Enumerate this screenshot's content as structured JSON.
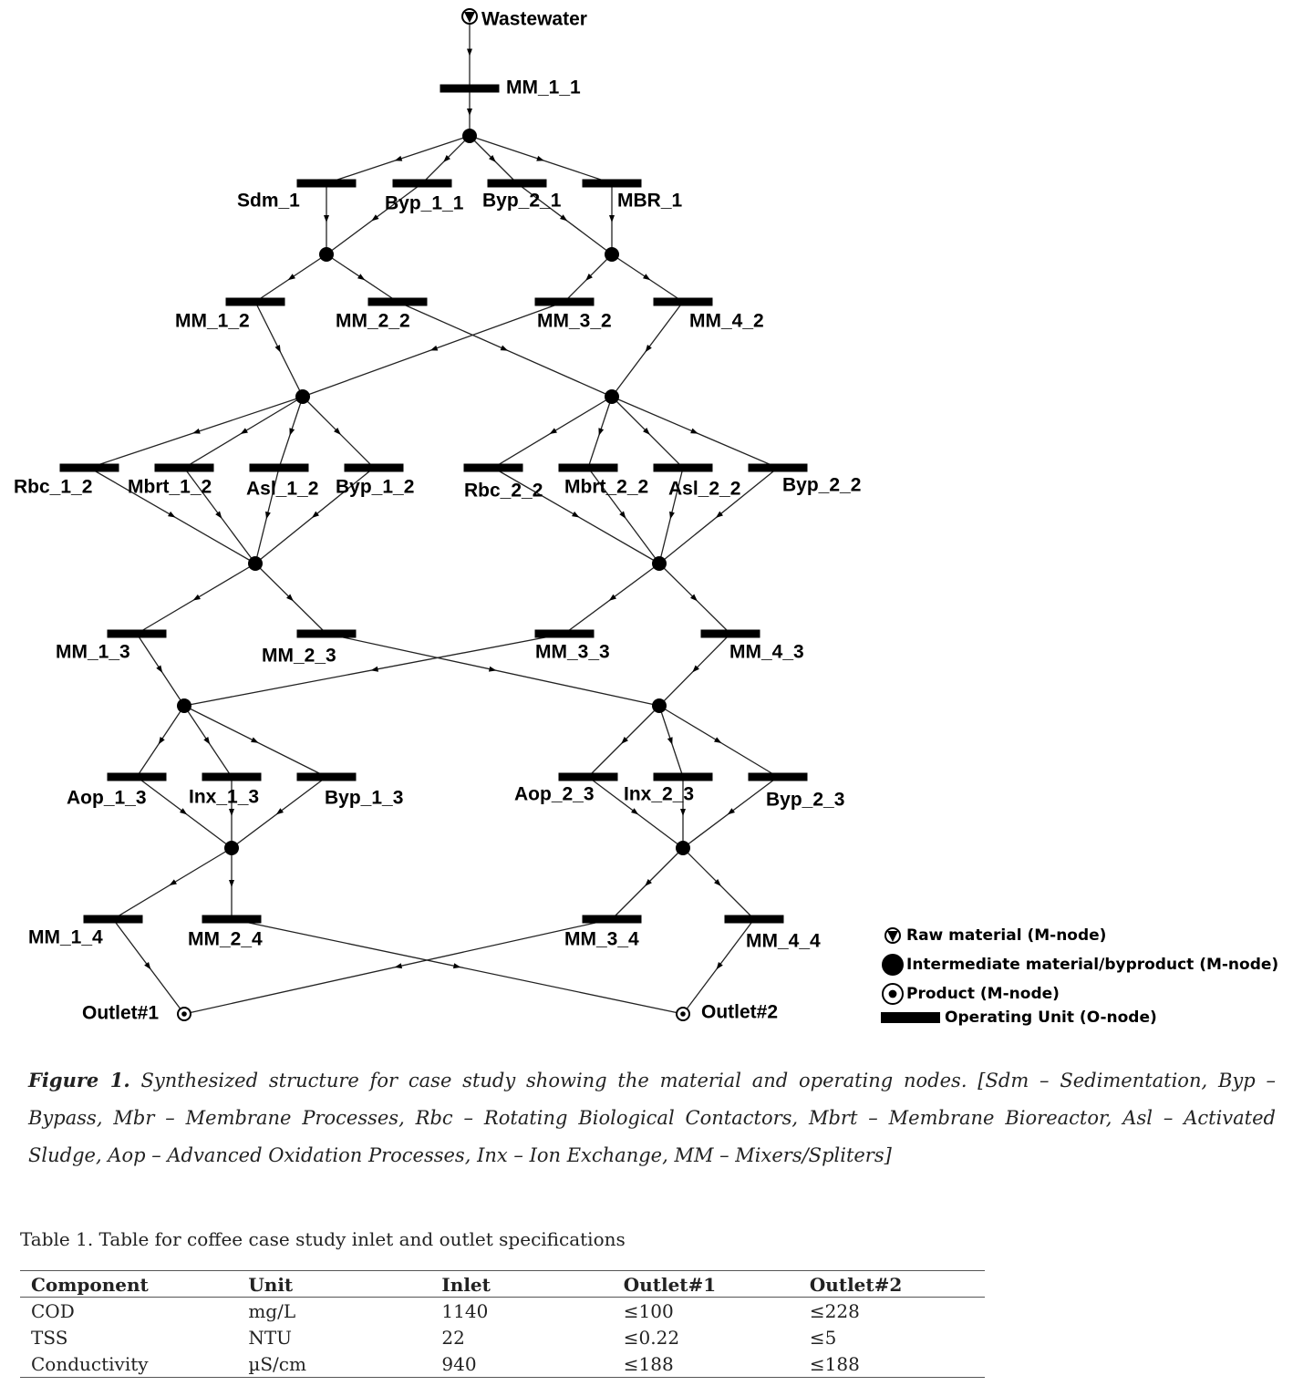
{
  "diagram": {
    "nodes": [
      {
        "label": "Wastewater"
      },
      {
        "label": "MM_1_1"
      },
      {
        "label": "Sdm_1"
      },
      {
        "label": "Byp_1_1"
      },
      {
        "label": "Byp_2_1"
      },
      {
        "label": "MBR_1"
      },
      {
        "label": "MM_1_2"
      },
      {
        "label": "MM_2_2"
      },
      {
        "label": "MM_3_2"
      },
      {
        "label": "MM_4_2"
      },
      {
        "label": "Rbc_1_2"
      },
      {
        "label": "Mbrt_1_2"
      },
      {
        "label": "Asl_1_2"
      },
      {
        "label": "Byp_1_2"
      },
      {
        "label": "Rbc_2_2"
      },
      {
        "label": "Mbrt_2_2"
      },
      {
        "label": "Asl_2_2"
      },
      {
        "label": "Byp_2_2"
      },
      {
        "label": "MM_1_3"
      },
      {
        "label": "MM_2_3"
      },
      {
        "label": "MM_3_3"
      },
      {
        "label": "MM_4_3"
      },
      {
        "label": "Aop_1_3"
      },
      {
        "label": "Inx_1_3"
      },
      {
        "label": "Byp_1_3"
      },
      {
        "label": "Aop_2_3"
      },
      {
        "label": "Inx_2_3"
      },
      {
        "label": "Byp_2_3"
      },
      {
        "label": "MM_1_4"
      },
      {
        "label": "MM_2_4"
      },
      {
        "label": "MM_3_4"
      },
      {
        "label": "MM_4_4"
      },
      {
        "label": "Outlet#1"
      },
      {
        "label": "Outlet#2"
      }
    ],
    "legend": [
      "Raw material (M-node)",
      "Intermediate material/byproduct (M-node)",
      "Product (M-node)",
      "Operating Unit (O-node)"
    ]
  },
  "caption": {
    "label": "Figure 1.",
    "text": "Synthesized structure for case study showing the material and operating nodes. [Sdm – Sedimentation, Byp – Bypass, Mbr – Membrane Processes, Rbc – Rotating Biological Contactors, Mbrt – Membrane Bioreactor, Asl – Activated Sludge, Aop – Advanced Oxidation Processes, Inx – Ion Exchange, MM – Mixers/Spliters]"
  },
  "table": {
    "title": "Table 1. Table for coffee case study inlet and outlet specifications",
    "header": [
      "Component",
      "Unit",
      "Inlet",
      "Outlet#1",
      "Outlet#2"
    ],
    "rows": [
      [
        "COD",
        "mg/L",
        1140,
        "≤100",
        "≤228"
      ],
      [
        "TSS",
        "NTU",
        22,
        "≤0.22",
        "≤5"
      ],
      [
        "Conductivity",
        "µS/cm",
        940,
        "≤188",
        "≤188"
      ]
    ]
  }
}
